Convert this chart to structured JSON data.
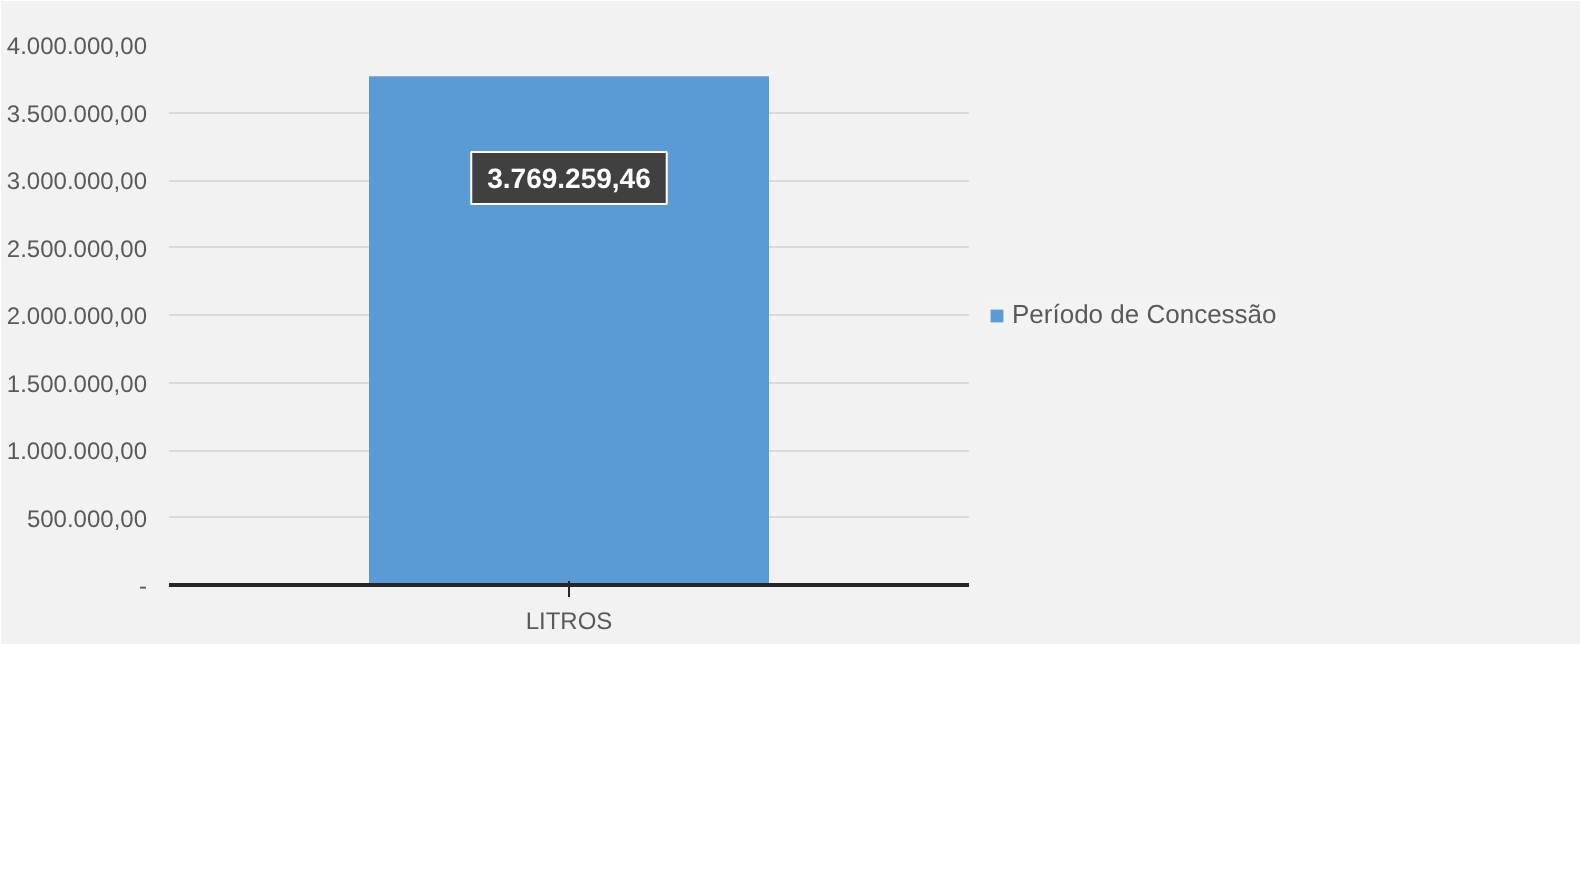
{
  "chart_data": {
    "type": "bar",
    "categories": [
      "LITROS"
    ],
    "series": [
      {
        "name": "Período de Concessão",
        "color": "#5b9bd5",
        "values": [
          3769259.46
        ]
      }
    ],
    "value_labels": [
      "3.769.259,46"
    ],
    "ylim": [
      0,
      4000000
    ],
    "yticks": [
      {
        "value": 0,
        "label": "-"
      },
      {
        "value": 500000,
        "label": "500.000,00"
      },
      {
        "value": 1000000,
        "label": "1.000.000,00"
      },
      {
        "value": 1500000,
        "label": "1.500.000,00"
      },
      {
        "value": 2000000,
        "label": "2.000.000,00"
      },
      {
        "value": 2500000,
        "label": "2.500.000,00"
      },
      {
        "value": 3000000,
        "label": "3.000.000,00"
      },
      {
        "value": 3500000,
        "label": "3.500.000,00"
      },
      {
        "value": 4000000,
        "label": "4.000.000,00"
      }
    ],
    "grid": "y",
    "legend": "right"
  }
}
